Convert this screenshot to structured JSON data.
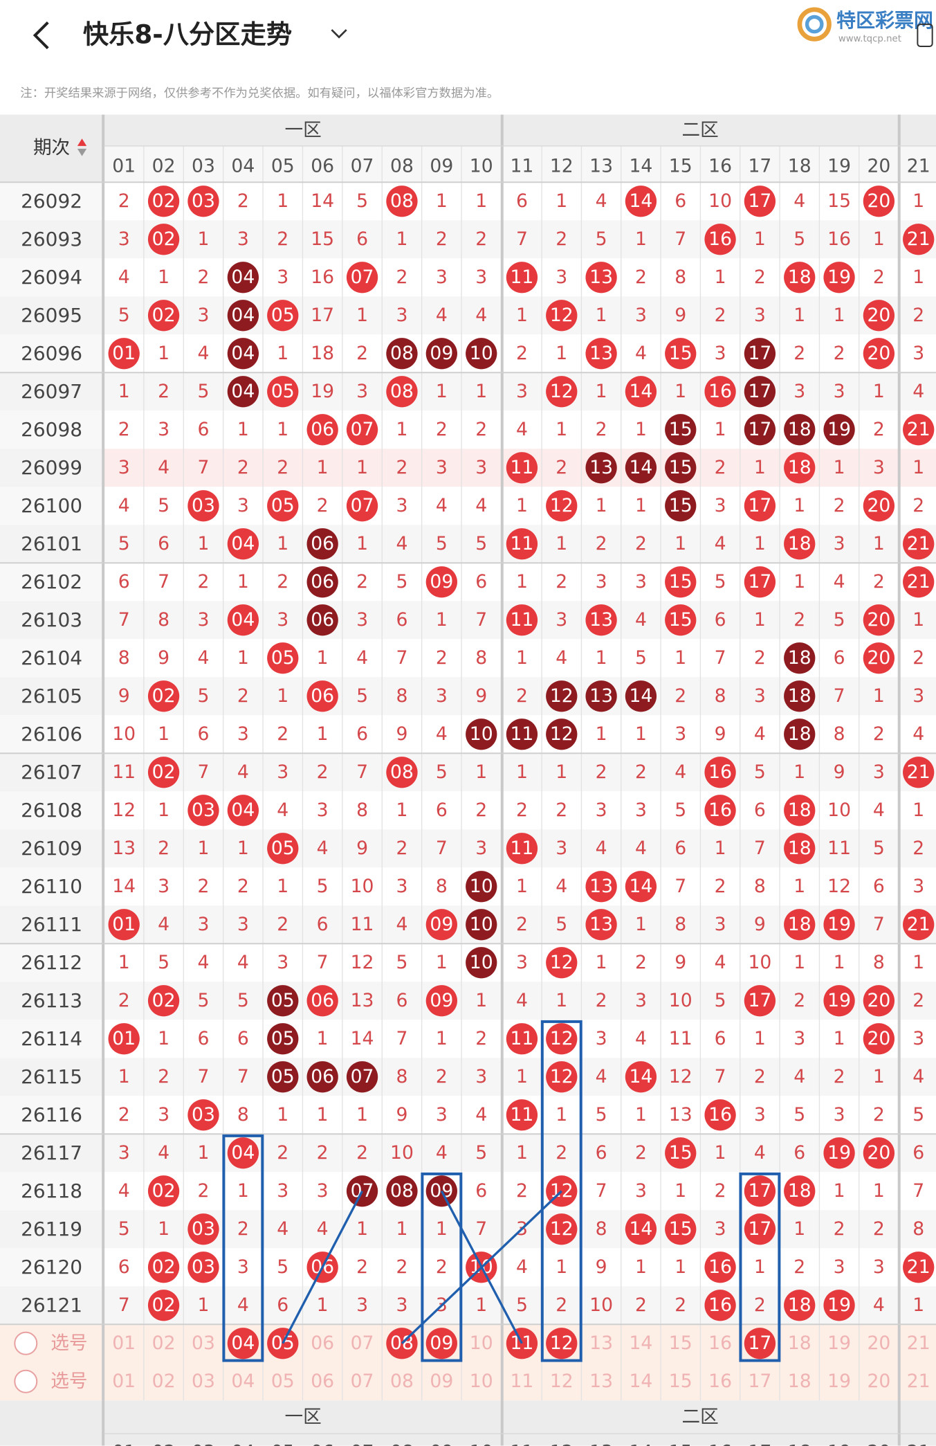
{
  "header": {
    "title": "快乐8-八分区走势",
    "logo": "特区彩票网",
    "logo_url": "www.tqcp.net"
  },
  "note": "注：开奖结果来源于网络，仅供参考不作为兑奖依据。如有疑问，以福体彩官方数据为准。",
  "table": {
    "period_label": "期次",
    "zones": [
      "一区",
      "二区"
    ],
    "columns": [
      "01",
      "02",
      "03",
      "04",
      "05",
      "06",
      "07",
      "08",
      "09",
      "10",
      "11",
      "12",
      "13",
      "14",
      "15",
      "16",
      "17",
      "18",
      "19",
      "20",
      "21"
    ],
    "hit_color": "#e6393d",
    "dark_color": "#8e1b1f",
    "miss_color": "#d4474b",
    "rows": [
      {
        "period": "26092",
        "cells": [
          2,
          "02",
          "03",
          2,
          1,
          14,
          5,
          "08",
          1,
          1,
          6,
          1,
          4,
          "14",
          6,
          10,
          "17",
          4,
          15,
          "20",
          1
        ],
        "dark": []
      },
      {
        "period": "26093",
        "cells": [
          3,
          "02",
          1,
          3,
          2,
          15,
          6,
          1,
          2,
          2,
          7,
          2,
          5,
          1,
          7,
          "16",
          1,
          5,
          16,
          1,
          "21"
        ],
        "dark": []
      },
      {
        "period": "26094",
        "cells": [
          4,
          1,
          2,
          "04",
          3,
          16,
          "07",
          2,
          3,
          3,
          "11",
          3,
          "13",
          2,
          8,
          1,
          2,
          "18",
          "19",
          2,
          1
        ],
        "dark": [
          3
        ]
      },
      {
        "period": "26095",
        "cells": [
          5,
          "02",
          3,
          "04",
          "05",
          17,
          1,
          3,
          4,
          4,
          1,
          "12",
          1,
          3,
          9,
          2,
          3,
          1,
          1,
          "20",
          2
        ],
        "dark": [
          3
        ]
      },
      {
        "period": "26096",
        "cells": [
          "01",
          1,
          4,
          "04",
          1,
          18,
          2,
          "08",
          "09",
          "10",
          2,
          1,
          "13",
          4,
          "15",
          3,
          "17",
          2,
          2,
          "20",
          3
        ],
        "dark": [
          3,
          7,
          8,
          9,
          16
        ]
      },
      {
        "period": "26097",
        "cells": [
          1,
          2,
          5,
          "04",
          "05",
          19,
          3,
          "08",
          1,
          1,
          3,
          "12",
          1,
          "14",
          1,
          "16",
          "17",
          3,
          3,
          1,
          4
        ],
        "dark": [
          3,
          16
        ]
      },
      {
        "period": "26098",
        "cells": [
          2,
          3,
          6,
          1,
          1,
          "06",
          "07",
          1,
          2,
          2,
          4,
          1,
          2,
          1,
          "15",
          1,
          "17",
          "18",
          "19",
          2,
          "21"
        ],
        "dark": [
          14,
          16,
          17,
          18
        ]
      },
      {
        "period": "26099",
        "cells": [
          3,
          4,
          7,
          2,
          2,
          1,
          1,
          2,
          3,
          3,
          "11",
          2,
          "13",
          "14",
          "15",
          2,
          1,
          "18",
          1,
          3,
          1
        ],
        "dark": [
          12,
          13,
          14
        ]
      },
      {
        "period": "26100",
        "cells": [
          4,
          5,
          "03",
          3,
          "05",
          2,
          "07",
          3,
          4,
          4,
          1,
          "12",
          1,
          1,
          "15",
          3,
          "17",
          1,
          2,
          "20",
          2
        ],
        "dark": [
          14
        ]
      },
      {
        "period": "26101",
        "cells": [
          5,
          6,
          1,
          "04",
          1,
          "06",
          1,
          4,
          5,
          5,
          "11",
          1,
          2,
          2,
          1,
          4,
          1,
          "18",
          3,
          1,
          "21"
        ],
        "dark": [
          5
        ]
      },
      {
        "period": "26102",
        "cells": [
          6,
          7,
          2,
          1,
          2,
          "06",
          2,
          5,
          "09",
          6,
          1,
          2,
          3,
          3,
          "15",
          5,
          "17",
          1,
          4,
          2,
          "21"
        ],
        "dark": [
          5
        ]
      },
      {
        "period": "26103",
        "cells": [
          7,
          8,
          3,
          "04",
          3,
          "06",
          3,
          6,
          1,
          7,
          "11",
          3,
          "13",
          4,
          "15",
          6,
          1,
          2,
          5,
          "20",
          1
        ],
        "dark": [
          5
        ]
      },
      {
        "period": "26104",
        "cells": [
          8,
          9,
          4,
          1,
          "05",
          1,
          4,
          7,
          2,
          8,
          1,
          4,
          1,
          5,
          1,
          7,
          2,
          "18",
          6,
          "20",
          2
        ],
        "dark": [
          17
        ]
      },
      {
        "period": "26105",
        "cells": [
          9,
          "02",
          5,
          2,
          1,
          "06",
          5,
          8,
          3,
          9,
          2,
          "12",
          "13",
          "14",
          2,
          8,
          3,
          "18",
          7,
          1,
          3
        ],
        "dark": [
          11,
          12,
          13,
          17
        ]
      },
      {
        "period": "26106",
        "cells": [
          10,
          1,
          6,
          3,
          2,
          1,
          6,
          9,
          4,
          "10",
          "11",
          "12",
          1,
          1,
          3,
          9,
          4,
          "18",
          8,
          2,
          4
        ],
        "dark": [
          9,
          10,
          11,
          17
        ]
      },
      {
        "period": "26107",
        "cells": [
          11,
          "02",
          7,
          4,
          3,
          2,
          7,
          "08",
          5,
          1,
          1,
          1,
          2,
          2,
          4,
          "16",
          5,
          1,
          9,
          3,
          "21"
        ],
        "dark": []
      },
      {
        "period": "26108",
        "cells": [
          12,
          1,
          "03",
          "04",
          4,
          3,
          8,
          1,
          6,
          2,
          2,
          2,
          3,
          3,
          5,
          "16",
          6,
          "18",
          10,
          4,
          1
        ],
        "dark": []
      },
      {
        "period": "26109",
        "cells": [
          13,
          2,
          1,
          1,
          "05",
          4,
          9,
          2,
          7,
          3,
          "11",
          3,
          4,
          4,
          6,
          1,
          7,
          "18",
          11,
          5,
          2
        ],
        "dark": []
      },
      {
        "period": "26110",
        "cells": [
          14,
          3,
          2,
          2,
          1,
          5,
          10,
          3,
          8,
          "10",
          1,
          4,
          "13",
          "14",
          7,
          2,
          8,
          1,
          12,
          6,
          3
        ],
        "dark": [
          9
        ]
      },
      {
        "period": "26111",
        "cells": [
          "01",
          4,
          3,
          3,
          2,
          6,
          11,
          4,
          "09",
          "10",
          2,
          5,
          "13",
          1,
          8,
          3,
          9,
          "18",
          "19",
          7,
          "21"
        ],
        "dark": [
          9
        ]
      },
      {
        "period": "26112",
        "cells": [
          1,
          5,
          4,
          4,
          3,
          7,
          12,
          5,
          1,
          "10",
          3,
          "12",
          1,
          2,
          9,
          4,
          10,
          1,
          1,
          8,
          1
        ],
        "dark": [
          9
        ]
      },
      {
        "period": "26113",
        "cells": [
          2,
          "02",
          5,
          5,
          "05",
          "06",
          13,
          6,
          "09",
          1,
          4,
          1,
          2,
          3,
          10,
          5,
          "17",
          2,
          "19",
          "20",
          2
        ],
        "dark": [
          4
        ]
      },
      {
        "period": "26114",
        "cells": [
          "01",
          1,
          6,
          6,
          "05",
          1,
          14,
          7,
          1,
          2,
          "11",
          "12",
          3,
          4,
          11,
          6,
          1,
          3,
          1,
          "20",
          3
        ],
        "dark": [
          4
        ]
      },
      {
        "period": "26115",
        "cells": [
          1,
          2,
          7,
          7,
          "05",
          "06",
          "07",
          8,
          2,
          3,
          1,
          "12",
          4,
          "14",
          12,
          7,
          2,
          4,
          2,
          1,
          4
        ],
        "dark": [
          4,
          5,
          6
        ]
      },
      {
        "period": "26116",
        "cells": [
          2,
          3,
          "03",
          8,
          1,
          1,
          1,
          9,
          3,
          4,
          "11",
          1,
          5,
          1,
          13,
          "16",
          3,
          5,
          3,
          2,
          5
        ],
        "dark": []
      },
      {
        "period": "26117",
        "cells": [
          3,
          4,
          1,
          "04",
          2,
          2,
          2,
          10,
          4,
          5,
          1,
          2,
          6,
          2,
          "15",
          1,
          4,
          6,
          "19",
          "20",
          6
        ],
        "dark": []
      },
      {
        "period": "26118",
        "cells": [
          4,
          "02",
          2,
          1,
          3,
          3,
          "07",
          "08",
          "09",
          6,
          2,
          "12",
          7,
          3,
          1,
          2,
          "17",
          "18",
          1,
          1,
          7
        ],
        "dark": [
          6,
          7,
          8
        ]
      },
      {
        "period": "26119",
        "cells": [
          5,
          1,
          "03",
          2,
          4,
          4,
          1,
          1,
          1,
          7,
          3,
          "12",
          8,
          "14",
          "15",
          3,
          "17",
          1,
          2,
          2,
          8
        ],
        "dark": []
      },
      {
        "period": "26120",
        "cells": [
          6,
          "02",
          "03",
          3,
          5,
          "06",
          2,
          2,
          2,
          "10",
          4,
          1,
          9,
          1,
          1,
          "16",
          1,
          2,
          3,
          3,
          "21"
        ],
        "dark": []
      },
      {
        "period": "26121",
        "cells": [
          7,
          "02",
          1,
          4,
          6,
          1,
          3,
          3,
          3,
          1,
          5,
          2,
          10,
          2,
          2,
          "16",
          2,
          "18",
          "19",
          4,
          1
        ],
        "dark": []
      }
    ],
    "select_label": "选号",
    "select_rows": [
      {
        "picked": [
          3,
          4,
          7,
          8,
          10,
          11,
          16
        ]
      },
      {
        "picked": []
      }
    ]
  }
}
